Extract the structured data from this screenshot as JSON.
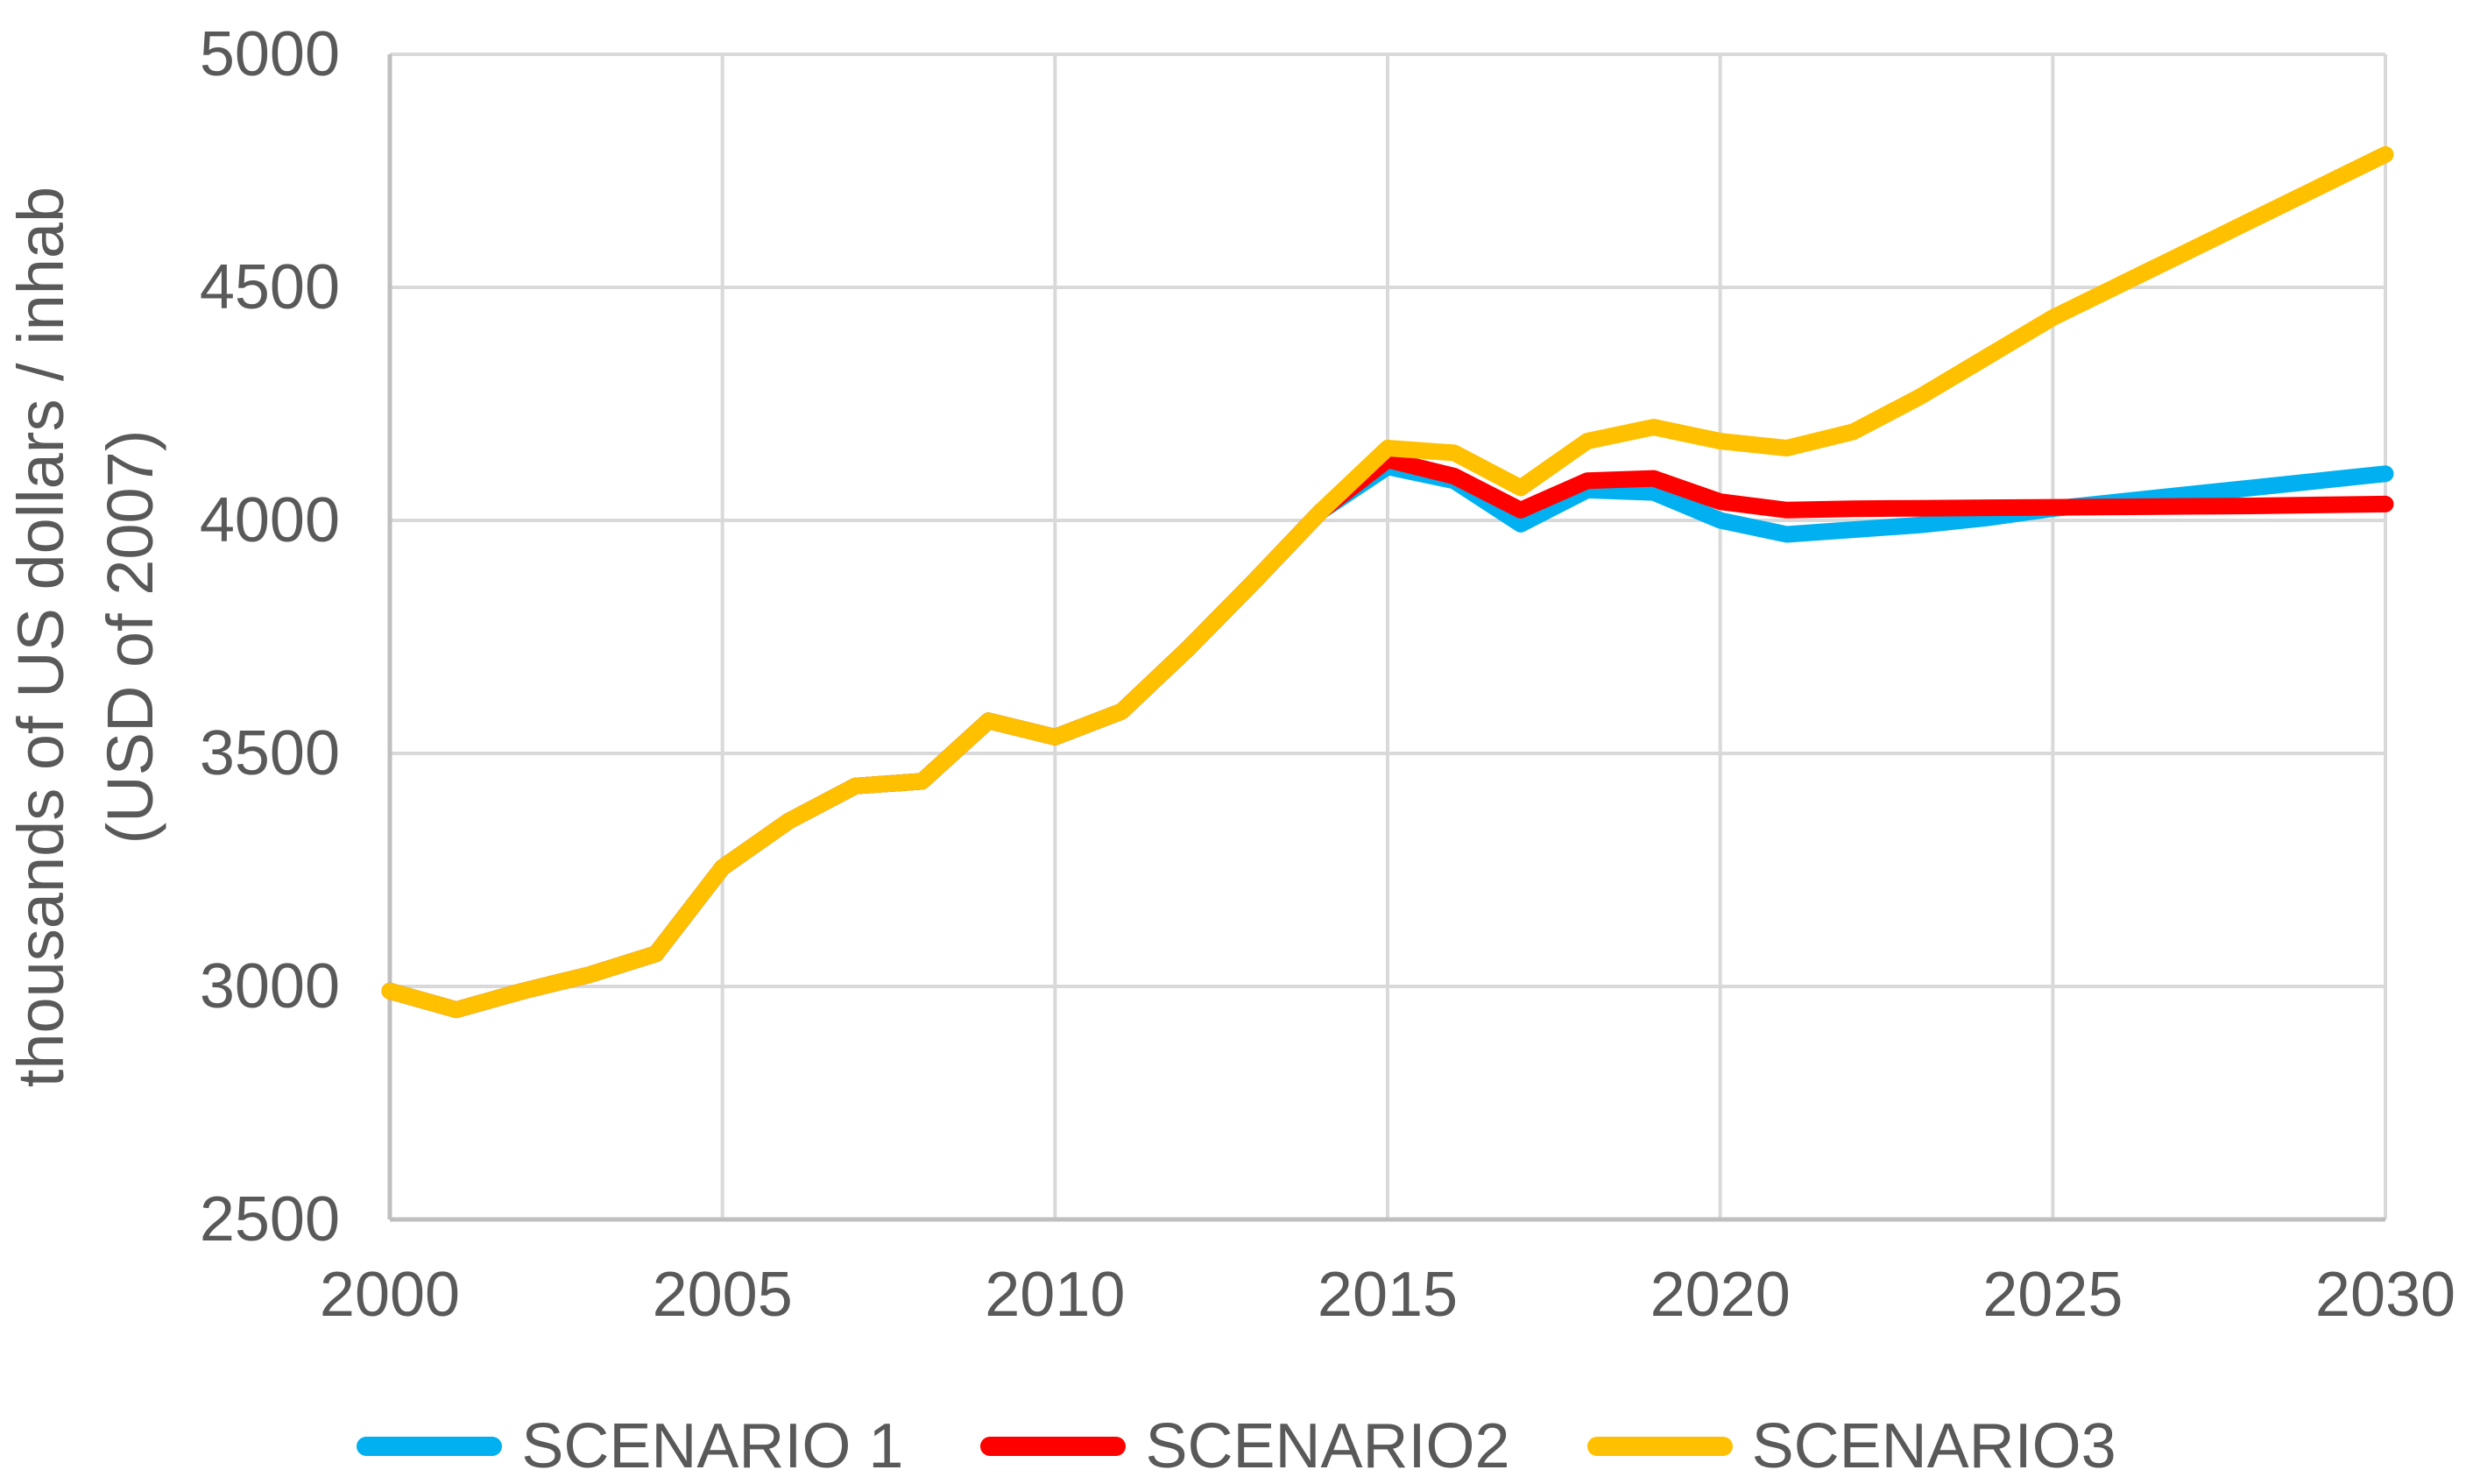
{
  "chart_data": {
    "type": "line",
    "title": "",
    "xlabel": "",
    "ylabel_line1": "thousands of US dollars / inhab",
    "ylabel_line2": "(USD of 2007)",
    "xlim": [
      2000,
      2030
    ],
    "ylim": [
      2500,
      5000
    ],
    "x_ticks": [
      2000,
      2005,
      2010,
      2015,
      2020,
      2025,
      2030
    ],
    "y_ticks": [
      2500,
      3000,
      3500,
      4000,
      4500,
      5000
    ],
    "grid": true,
    "legend_position": "bottom",
    "x": [
      2000,
      2001,
      2002,
      2003,
      2004,
      2005,
      2006,
      2007,
      2008,
      2009,
      2010,
      2011,
      2012,
      2013,
      2014,
      2015,
      2016,
      2017,
      2018,
      2019,
      2020,
      2021,
      2022,
      2023,
      2024,
      2025,
      2026,
      2027,
      2028,
      2029,
      2030
    ],
    "series": [
      {
        "name": "SCENARIO 1",
        "color": "#00B0F0",
        "values": [
          2990,
          2950,
          2990,
          3025,
          3070,
          3255,
          3355,
          3430,
          3440,
          3570,
          3535,
          3590,
          3725,
          3870,
          4020,
          4115,
          4085,
          3992,
          4065,
          4060,
          4000,
          3970,
          3980,
          3990,
          4005,
          4025,
          4040,
          4055,
          4070,
          4085,
          4100
        ]
      },
      {
        "name": "SCENARIO2",
        "color": "#FF0000",
        "values": [
          2990,
          2950,
          2990,
          3025,
          3070,
          3255,
          3355,
          3430,
          3440,
          3570,
          3535,
          3590,
          3725,
          3870,
          4020,
          4130,
          4095,
          4022,
          4085,
          4090,
          4040,
          4022,
          4025,
          4026,
          4027,
          4028,
          4029,
          4030,
          4031,
          4033,
          4035
        ]
      },
      {
        "name": "SCENARIO3",
        "color": "#FFC000",
        "values": [
          2990,
          2950,
          2990,
          3025,
          3070,
          3255,
          3355,
          3430,
          3440,
          3570,
          3535,
          3590,
          3725,
          3870,
          4020,
          4155,
          4145,
          4070,
          4170,
          4200,
          4170,
          4155,
          4190,
          4265,
          4350,
          4435,
          4505,
          4575,
          4645,
          4715,
          4785
        ]
      }
    ],
    "colors": {
      "gridline": "#D9D9D9",
      "axis_line": "#BFBFBF",
      "text": "#595959",
      "background": "#FFFFFF"
    }
  }
}
